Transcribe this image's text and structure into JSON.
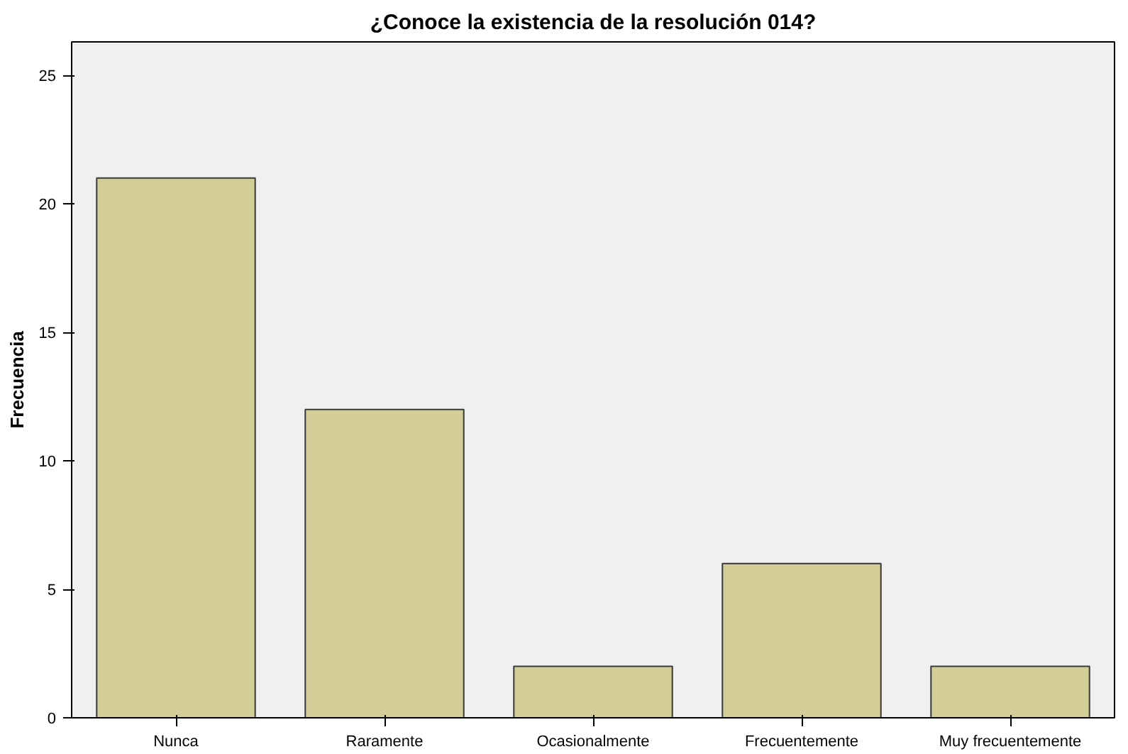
{
  "chart_data": {
    "type": "bar",
    "title": "¿Conoce la existencia de la resolución 014?",
    "ylabel": "Frecuencia",
    "categories": [
      "Nunca",
      "Raramente",
      "Ocasionalmente",
      "Frecuentemente",
      "Muy frecuentemente"
    ],
    "values": [
      21,
      12,
      2,
      6,
      2
    ],
    "color": "#d3ce97",
    "ylim": [
      0,
      26.3
    ],
    "yticks": [
      0,
      5,
      10,
      15,
      20,
      25
    ],
    "grid": false
  }
}
